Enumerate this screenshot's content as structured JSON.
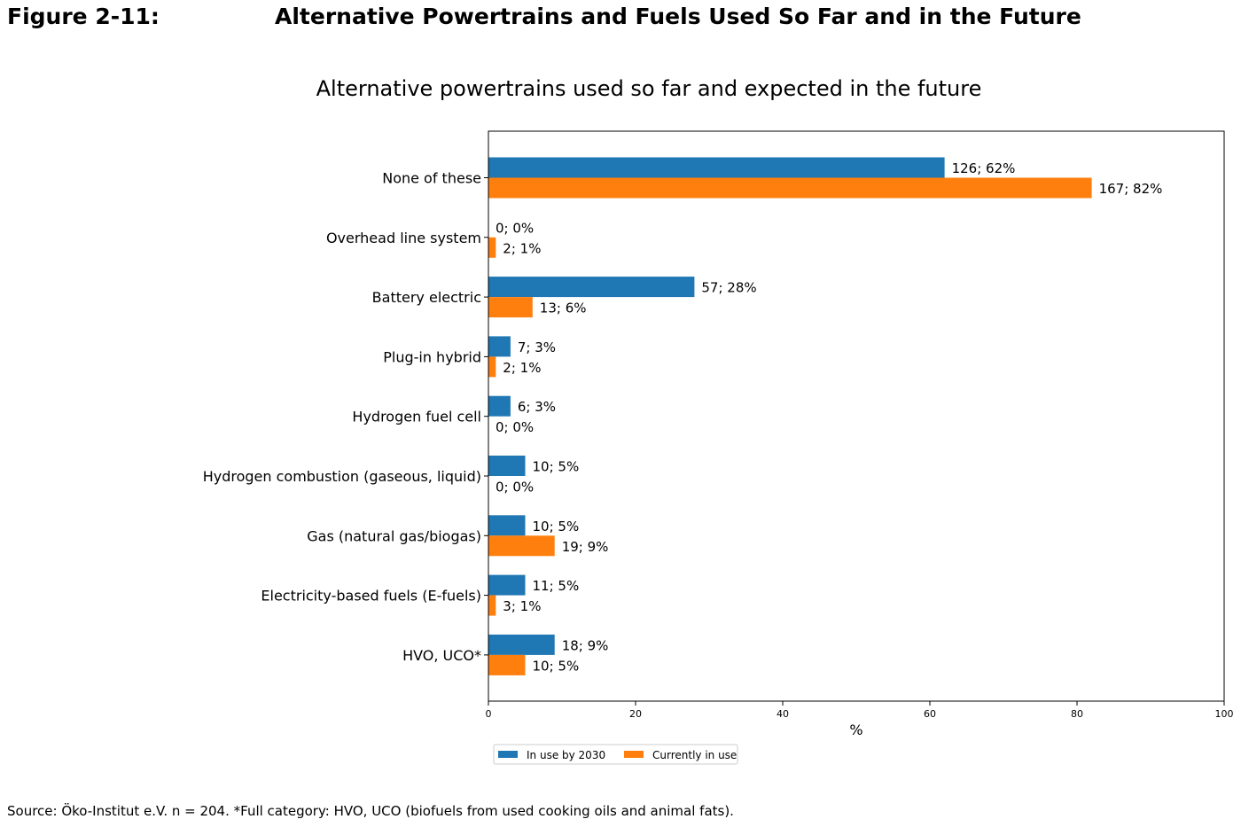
{
  "header": {
    "figure_label": "Figure 2-11:",
    "figure_title": "Alternative Powertrains and Fuels Used So Far and in the Future"
  },
  "chart_data": {
    "type": "bar",
    "orientation": "horizontal",
    "title": "Alternative powertrains used so far and expected in the future",
    "xlabel": "%",
    "ylabel": "",
    "xlim": [
      0,
      100
    ],
    "xticks": [
      0,
      20,
      40,
      60,
      80,
      100
    ],
    "grid": false,
    "legend_position": "bottom-center",
    "categories": [
      "None of these",
      "Overhead line system",
      "Battery electric",
      "Plug-in hybrid",
      "Hydrogen fuel cell",
      "Hydrogen combustion (gaseous, liquid)",
      "Gas (natural gas/biogas)",
      "Electricity-based fuels (E-fuels)",
      "HVO, UCO*"
    ],
    "series": [
      {
        "name": "In use by 2030",
        "color": "#1f77b4",
        "values": [
          62,
          0,
          28,
          3,
          3,
          5,
          5,
          5,
          9
        ],
        "labels": [
          "126; 62%",
          "0; 0%",
          "57; 28%",
          "7; 3%",
          "6; 3%",
          "10; 5%",
          "10; 5%",
          "11; 5%",
          "18; 9%"
        ]
      },
      {
        "name": "Currently in use",
        "color": "#ff7f0e",
        "values": [
          82,
          1,
          6,
          1,
          0,
          0,
          9,
          1,
          5
        ],
        "labels": [
          "167; 82%",
          "2; 1%",
          "13; 6%",
          "2; 1%",
          "0; 0%",
          "0; 0%",
          "19; 9%",
          "3; 1%",
          "10; 5%"
        ]
      }
    ]
  },
  "footer": {
    "source": "Source: Öko-Institut e.V. n = 204. *Full category: HVO, UCO (biofuels from used cooking oils and animal fats)."
  }
}
